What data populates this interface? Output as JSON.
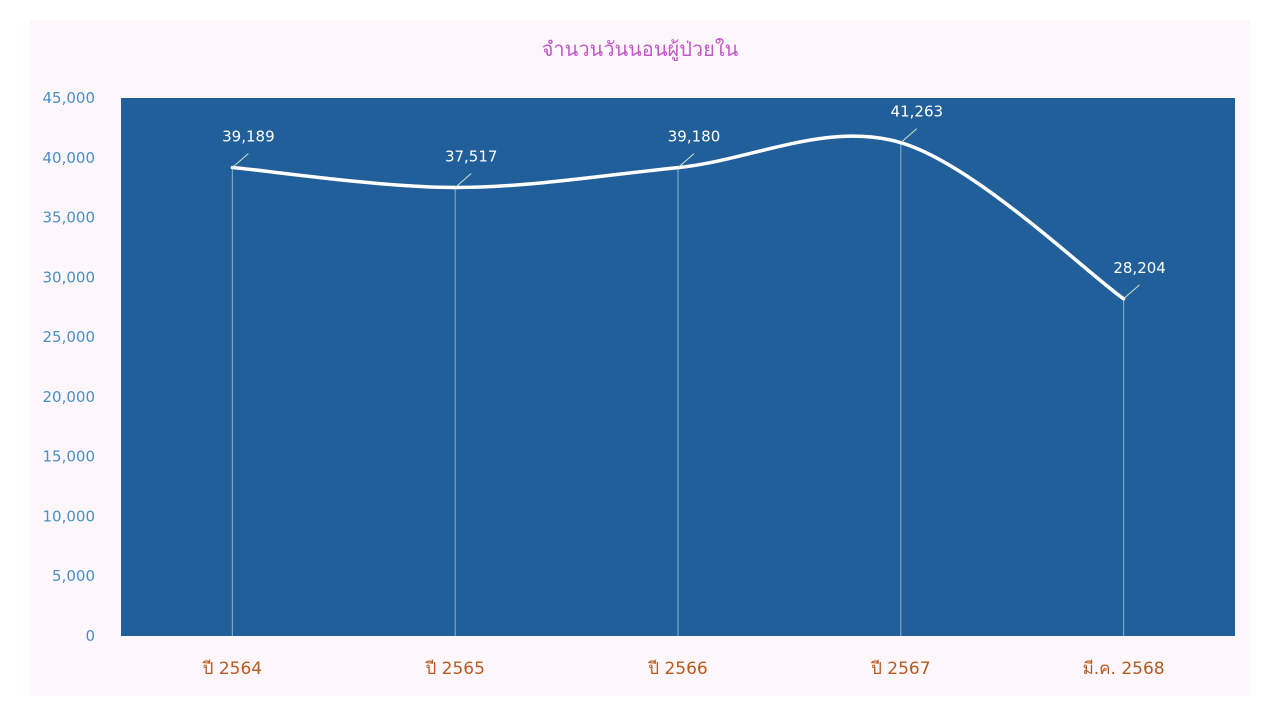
{
  "chart_data": {
    "type": "line",
    "title": "จำนวนวันนอนผู้ป่วยใน",
    "categories": [
      "ปี 2564",
      "ปี 2565",
      "ปี 2566",
      "ปี 2567",
      "มี.ค. 2568"
    ],
    "values": [
      39189,
      37517,
      39180,
      41263,
      28204
    ],
    "data_labels": [
      "39,189",
      "37,517",
      "39,180",
      "41,263",
      "28,204"
    ],
    "ylim": [
      0,
      45000
    ],
    "yticks": [
      0,
      5000,
      10000,
      15000,
      20000,
      25000,
      30000,
      35000,
      40000,
      45000
    ],
    "ytick_labels": [
      "0",
      "5,000",
      "10,000",
      "15,000",
      "20,000",
      "25,000",
      "30,000",
      "35,000",
      "40,000",
      "45,000"
    ],
    "smooth": true,
    "drop_lines": true,
    "grid": false,
    "colors": {
      "card_background": "#fdf7fb",
      "plot_background": "#215f9a",
      "line": "#ffffff",
      "title": "#c259c7",
      "y_tick_labels": "#4a8fc4",
      "x_tick_labels": "#b85a1f",
      "data_labels": "#ffffff",
      "drop_lines": "#7fa3c6",
      "leader_lines": "#c8e6c9"
    }
  }
}
